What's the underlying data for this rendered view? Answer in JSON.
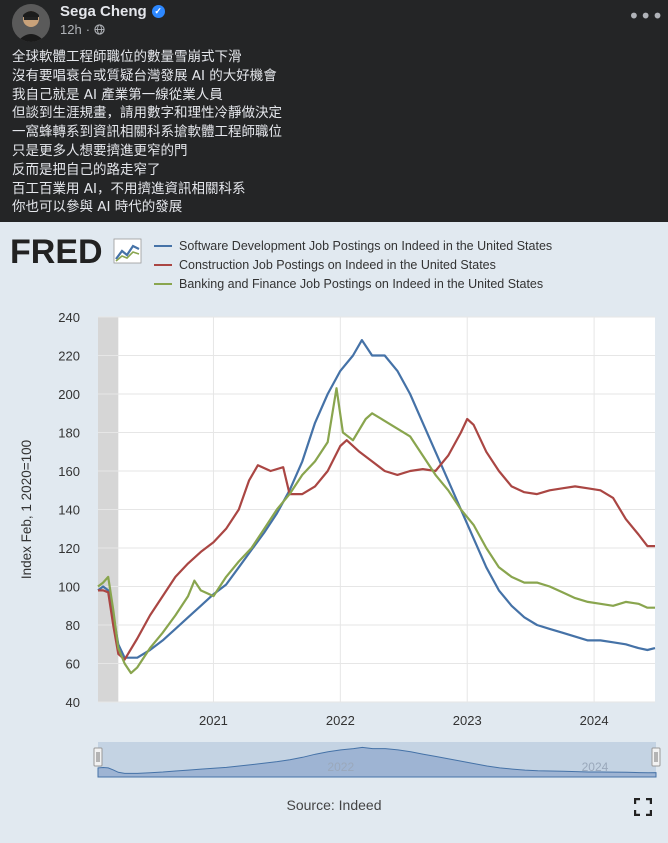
{
  "post": {
    "author": "Sega Cheng",
    "time": "12h",
    "dot": "·",
    "lines": [
      "全球軟體工程師職位的數量雪崩式下滑",
      "沒有要唱衰台或質疑台灣發展 AI 的大好機會",
      "我自己就是 AI 產業第一線從業人員",
      "但談到生涯規畫，請用數字和理性冷靜做決定",
      "一窩蜂轉系到資訊相關科系搶軟體工程師職位",
      "只是更多人想要擠進更窄的門",
      "反而是把自己的路走窄了",
      "百工百業用 AI，不用擠進資訊相關科系",
      "你也可以參與 AI 時代的發展"
    ],
    "icons": {
      "avatar": "avatar",
      "verified": "verified-badge-icon",
      "privacy": "globe-icon",
      "more": "more-options-icon"
    },
    "verified_glyph": "✓",
    "more_glyph": "•••"
  },
  "fred": {
    "logo_text": "FRED",
    "source": "Source: Indeed",
    "fullscreen_icon": "fullscreen-icon"
  },
  "chart_data": {
    "type": "line",
    "ylabel": "Index Feb, 1 2020=100",
    "ylim": [
      40,
      240
    ],
    "yticks": [
      40,
      60,
      80,
      100,
      120,
      140,
      160,
      180,
      200,
      220,
      240
    ],
    "xlim": [
      2020.09,
      2024.48
    ],
    "xticks": [
      {
        "label": "2021",
        "value": 2021.0
      },
      {
        "label": "2022",
        "value": 2022.0
      },
      {
        "label": "2023",
        "value": 2023.0
      },
      {
        "label": "2024",
        "value": 2024.0
      }
    ],
    "shaded_region": [
      2020.09,
      2020.25
    ],
    "navigator": {
      "labels": [
        "2022",
        "2024"
      ]
    },
    "series": [
      {
        "name": "Software Development Job Postings on Indeed in the United States",
        "color": "#4572a7",
        "points": [
          [
            2020.09,
            98
          ],
          [
            2020.13,
            100
          ],
          [
            2020.17,
            98
          ],
          [
            2020.21,
            85
          ],
          [
            2020.25,
            70
          ],
          [
            2020.3,
            63
          ],
          [
            2020.4,
            63
          ],
          [
            2020.5,
            67
          ],
          [
            2020.6,
            72
          ],
          [
            2020.7,
            78
          ],
          [
            2020.8,
            84
          ],
          [
            2020.9,
            90
          ],
          [
            2021.0,
            96
          ],
          [
            2021.1,
            101
          ],
          [
            2021.2,
            110
          ],
          [
            2021.3,
            119
          ],
          [
            2021.4,
            128
          ],
          [
            2021.5,
            138
          ],
          [
            2021.6,
            150
          ],
          [
            2021.7,
            165
          ],
          [
            2021.8,
            185
          ],
          [
            2021.9,
            200
          ],
          [
            2022.0,
            212
          ],
          [
            2022.1,
            220
          ],
          [
            2022.17,
            228
          ],
          [
            2022.25,
            220
          ],
          [
            2022.35,
            220
          ],
          [
            2022.45,
            212
          ],
          [
            2022.55,
            200
          ],
          [
            2022.65,
            185
          ],
          [
            2022.75,
            170
          ],
          [
            2022.85,
            155
          ],
          [
            2022.95,
            140
          ],
          [
            2023.05,
            125
          ],
          [
            2023.15,
            110
          ],
          [
            2023.25,
            98
          ],
          [
            2023.35,
            90
          ],
          [
            2023.45,
            84
          ],
          [
            2023.55,
            80
          ],
          [
            2023.65,
            78
          ],
          [
            2023.75,
            76
          ],
          [
            2023.85,
            74
          ],
          [
            2023.95,
            72
          ],
          [
            2024.05,
            72
          ],
          [
            2024.15,
            71
          ],
          [
            2024.25,
            70
          ],
          [
            2024.35,
            68
          ],
          [
            2024.42,
            67
          ],
          [
            2024.48,
            68
          ]
        ]
      },
      {
        "name": "Construction Job Postings on Indeed in the United States",
        "color": "#aa4643",
        "points": [
          [
            2020.09,
            98
          ],
          [
            2020.13,
            98
          ],
          [
            2020.17,
            97
          ],
          [
            2020.21,
            80
          ],
          [
            2020.25,
            65
          ],
          [
            2020.3,
            62
          ],
          [
            2020.4,
            73
          ],
          [
            2020.5,
            85
          ],
          [
            2020.6,
            95
          ],
          [
            2020.7,
            105
          ],
          [
            2020.8,
            112
          ],
          [
            2020.9,
            118
          ],
          [
            2021.0,
            123
          ],
          [
            2021.1,
            130
          ],
          [
            2021.2,
            140
          ],
          [
            2021.28,
            155
          ],
          [
            2021.35,
            163
          ],
          [
            2021.45,
            160
          ],
          [
            2021.55,
            162
          ],
          [
            2021.6,
            148
          ],
          [
            2021.7,
            148
          ],
          [
            2021.8,
            152
          ],
          [
            2021.9,
            160
          ],
          [
            2022.0,
            173
          ],
          [
            2022.05,
            176
          ],
          [
            2022.15,
            170
          ],
          [
            2022.25,
            165
          ],
          [
            2022.35,
            160
          ],
          [
            2022.45,
            158
          ],
          [
            2022.55,
            160
          ],
          [
            2022.65,
            161
          ],
          [
            2022.75,
            160
          ],
          [
            2022.85,
            168
          ],
          [
            2022.95,
            180
          ],
          [
            2023.0,
            187
          ],
          [
            2023.05,
            184
          ],
          [
            2023.15,
            170
          ],
          [
            2023.25,
            160
          ],
          [
            2023.35,
            152
          ],
          [
            2023.45,
            149
          ],
          [
            2023.55,
            148
          ],
          [
            2023.65,
            150
          ],
          [
            2023.75,
            151
          ],
          [
            2023.85,
            152
          ],
          [
            2023.95,
            151
          ],
          [
            2024.05,
            150
          ],
          [
            2024.15,
            146
          ],
          [
            2024.25,
            135
          ],
          [
            2024.35,
            127
          ],
          [
            2024.42,
            121
          ],
          [
            2024.48,
            121
          ]
        ]
      },
      {
        "name": "Banking and Finance Job Postings on Indeed in the United States",
        "color": "#89a54e",
        "points": [
          [
            2020.09,
            100
          ],
          [
            2020.13,
            102
          ],
          [
            2020.17,
            105
          ],
          [
            2020.21,
            88
          ],
          [
            2020.25,
            68
          ],
          [
            2020.3,
            60
          ],
          [
            2020.35,
            55
          ],
          [
            2020.4,
            58
          ],
          [
            2020.5,
            68
          ],
          [
            2020.6,
            76
          ],
          [
            2020.7,
            85
          ],
          [
            2020.8,
            95
          ],
          [
            2020.85,
            103
          ],
          [
            2020.9,
            98
          ],
          [
            2021.0,
            95
          ],
          [
            2021.1,
            105
          ],
          [
            2021.2,
            113
          ],
          [
            2021.3,
            120
          ],
          [
            2021.4,
            130
          ],
          [
            2021.5,
            140
          ],
          [
            2021.6,
            148
          ],
          [
            2021.7,
            158
          ],
          [
            2021.8,
            165
          ],
          [
            2021.9,
            175
          ],
          [
            2021.97,
            203
          ],
          [
            2022.02,
            180
          ],
          [
            2022.1,
            176
          ],
          [
            2022.2,
            187
          ],
          [
            2022.25,
            190
          ],
          [
            2022.35,
            186
          ],
          [
            2022.45,
            182
          ],
          [
            2022.55,
            178
          ],
          [
            2022.65,
            168
          ],
          [
            2022.75,
            158
          ],
          [
            2022.85,
            150
          ],
          [
            2022.95,
            140
          ],
          [
            2023.05,
            132
          ],
          [
            2023.15,
            120
          ],
          [
            2023.25,
            110
          ],
          [
            2023.35,
            105
          ],
          [
            2023.45,
            102
          ],
          [
            2023.55,
            102
          ],
          [
            2023.65,
            100
          ],
          [
            2023.75,
            97
          ],
          [
            2023.85,
            94
          ],
          [
            2023.95,
            92
          ],
          [
            2024.05,
            91
          ],
          [
            2024.15,
            90
          ],
          [
            2024.25,
            92
          ],
          [
            2024.35,
            91
          ],
          [
            2024.42,
            89
          ],
          [
            2024.48,
            89
          ]
        ]
      }
    ]
  }
}
